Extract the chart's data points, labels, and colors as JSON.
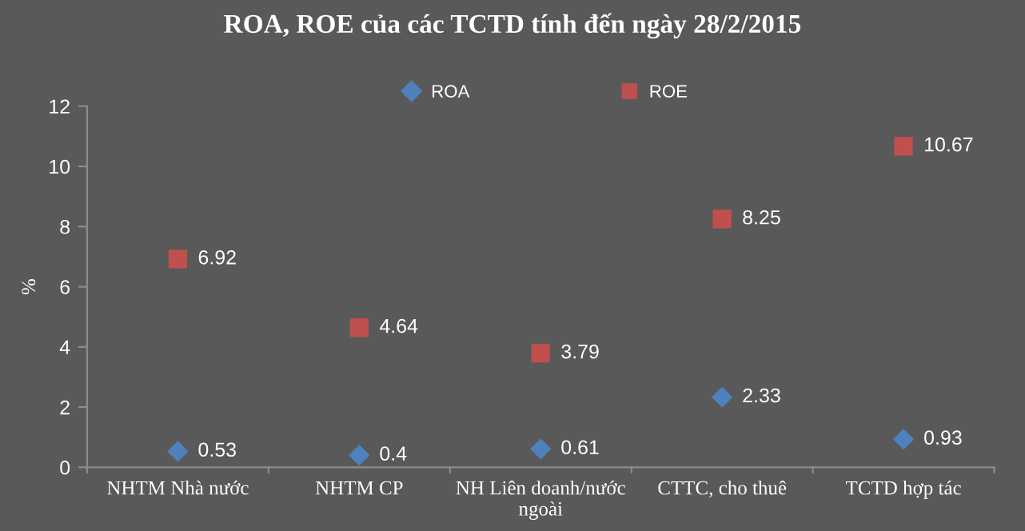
{
  "chart_data": {
    "type": "scatter",
    "title": "ROA, ROE của các TCTD tính đến ngày 28/2/2015",
    "ylabel": "%",
    "categories": [
      "NHTM Nhà nước",
      "NHTM CP",
      "NH Liên doanh/nước\nngoài",
      "CTTC, cho thuê",
      "TCTD hợp tác"
    ],
    "series": [
      {
        "name": "ROA",
        "color": "#4f81bd",
        "marker": "diamond",
        "values": [
          0.53,
          0.4,
          0.61,
          2.33,
          0.93
        ]
      },
      {
        "name": "ROE",
        "color": "#c0504d",
        "marker": "square",
        "values": [
          6.92,
          4.64,
          3.79,
          8.25,
          10.67
        ]
      }
    ],
    "ylim": [
      0,
      12
    ],
    "yticks": [
      0,
      2,
      4,
      6,
      8,
      10,
      12
    ],
    "grid": false,
    "legend": "top",
    "data_labels": true
  }
}
